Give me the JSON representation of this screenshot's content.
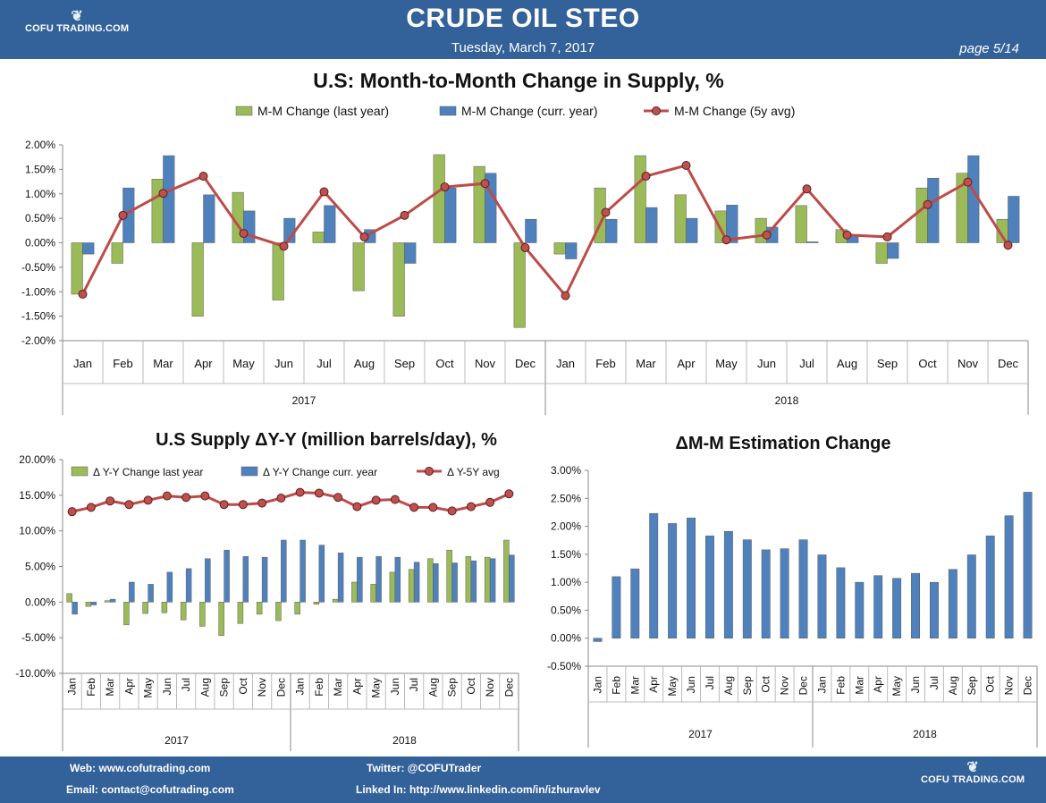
{
  "header": {
    "title": "CRUDE OIL STEO",
    "date": "Tuesday, March 7, 2017",
    "page": "page  5/14",
    "logo_text": "COFU TRADING.COM"
  },
  "footer": {
    "web_label": "Web:",
    "web_value": "www.cofutrading.com",
    "email_label": "Email:",
    "email_value": "contact@cofutrading.com",
    "twitter_label": "Twitter:",
    "twitter_value": "@COFUTrader",
    "linkedin_label": "Linked In:",
    "linkedin_value": "http://www.linkedin.com/in/izhuravlev",
    "logo_text": "COFU TRADING.COM"
  },
  "colors": {
    "header_bg": "#336199",
    "green": "#9bbb59",
    "blue": "#4f81bd",
    "red": "#be4b48",
    "dot": "#c0504d"
  },
  "chart_data": [
    {
      "type": "bar",
      "title": "U.S: Month-to-Month Change in Supply, %",
      "months": [
        "Jan",
        "Feb",
        "Mar",
        "Apr",
        "May",
        "Jun",
        "Jul",
        "Aug",
        "Sep",
        "Oct",
        "Nov",
        "Dec",
        "Jan",
        "Feb",
        "Mar",
        "Apr",
        "May",
        "Jun",
        "Jul",
        "Aug",
        "Sep",
        "Oct",
        "Nov",
        "Dec"
      ],
      "years": [
        "2017",
        "2018"
      ],
      "yticks": [
        "2.00%",
        "1.50%",
        "1.00%",
        "0.50%",
        "0.00%",
        "-0.50%",
        "-1.00%",
        "-1.50%",
        "-2.00%"
      ],
      "ylim": [
        -2.0,
        2.0
      ],
      "legend": "top",
      "grid": false,
      "series": [
        {
          "name": "M-M Change (last year)",
          "kind": "bar",
          "values": [
            -1.05,
            -0.42,
            1.3,
            -1.5,
            1.03,
            -1.17,
            0.22,
            -0.98,
            -1.5,
            1.8,
            1.56,
            -1.73,
            -0.23,
            1.12,
            1.78,
            0.98,
            0.65,
            0.5,
            0.76,
            0.27,
            -0.42,
            1.12,
            1.42,
            0.48
          ]
        },
        {
          "name": "M-M Change (curr. year)",
          "kind": "bar",
          "values": [
            -0.23,
            1.12,
            1.78,
            0.98,
            0.65,
            0.5,
            0.76,
            0.27,
            -0.42,
            1.12,
            1.42,
            0.48,
            -0.33,
            0.48,
            0.72,
            0.5,
            0.77,
            0.32,
            0.02,
            0.14,
            -0.32,
            1.32,
            1.78,
            0.95
          ]
        },
        {
          "name": "M-M Change (5y avg)",
          "kind": "line",
          "values": [
            -1.05,
            0.56,
            1.01,
            1.36,
            0.19,
            -0.07,
            1.04,
            0.12,
            0.56,
            1.14,
            1.21,
            -0.1,
            -1.08,
            0.62,
            1.36,
            1.58,
            0.06,
            0.16,
            1.1,
            0.16,
            0.12,
            0.78,
            1.24,
            -0.05
          ]
        }
      ]
    },
    {
      "type": "bar",
      "title": "U.S Supply ΔY-Y (million barrels/day), %",
      "months": [
        "Jan",
        "Feb",
        "Mar",
        "Apr",
        "May",
        "Jun",
        "Jul",
        "Aug",
        "Sep",
        "Oct",
        "Nov",
        "Dec",
        "Jan",
        "Feb",
        "Mar",
        "Apr",
        "May",
        "Jun",
        "Jul",
        "Aug",
        "Sep",
        "Oct",
        "Nov",
        "Dec"
      ],
      "years": [
        "2017",
        "2018"
      ],
      "yticks": [
        "20.00%",
        "15.00%",
        "10.00%",
        "5.00%",
        "0.00%",
        "-5.00%",
        "-10.00%"
      ],
      "ylim": [
        -10,
        20
      ],
      "legend": "top",
      "grid": false,
      "series": [
        {
          "name": "Δ Y-Y Change last year",
          "kind": "bar",
          "values": [
            1.2,
            -0.6,
            0.2,
            -3.2,
            -1.6,
            -1.5,
            -2.5,
            -3.4,
            -4.7,
            -3.0,
            -1.7,
            -2.6,
            -1.7,
            -0.3,
            0.4,
            2.8,
            2.5,
            4.2,
            4.6,
            6.1,
            7.3,
            6.4,
            6.3,
            8.7
          ]
        },
        {
          "name": "Δ Y-Y Change curr. year",
          "kind": "bar",
          "values": [
            -1.7,
            -0.4,
            0.4,
            2.8,
            2.5,
            4.2,
            4.7,
            6.1,
            7.3,
            6.4,
            6.3,
            8.7,
            8.7,
            8.0,
            6.9,
            6.3,
            6.4,
            6.3,
            5.6,
            5.4,
            5.5,
            5.8,
            6.1,
            6.6
          ]
        },
        {
          "name": "Δ Y-5Y avg",
          "kind": "line",
          "values": [
            12.7,
            13.3,
            14.2,
            13.7,
            14.3,
            14.9,
            14.7,
            14.9,
            13.7,
            13.7,
            13.9,
            14.6,
            15.4,
            15.3,
            14.7,
            13.4,
            14.3,
            14.4,
            13.3,
            13.3,
            12.8,
            13.4,
            14.0,
            15.2
          ]
        }
      ]
    },
    {
      "type": "bar",
      "title": "ΔM-M Estimation Change",
      "months": [
        "Jan",
        "Feb",
        "Mar",
        "Apr",
        "May",
        "Jun",
        "Jul",
        "Aug",
        "Sep",
        "Oct",
        "Nov",
        "Dec",
        "Jan",
        "Feb",
        "Mar",
        "Apr",
        "May",
        "Jun",
        "Jul",
        "Aug",
        "Sep",
        "Oct",
        "Nov",
        "Dec"
      ],
      "years": [
        "2017",
        "2018"
      ],
      "yticks": [
        "3.00%",
        "2.50%",
        "2.00%",
        "1.50%",
        "1.00%",
        "0.50%",
        "0.00%",
        "-0.50%"
      ],
      "ylim": [
        -0.5,
        3.0
      ],
      "grid": false,
      "series": [
        {
          "kind": "bar",
          "values": [
            -0.06,
            1.1,
            1.24,
            2.23,
            2.05,
            2.15,
            1.83,
            1.91,
            1.76,
            1.58,
            1.6,
            1.76,
            1.49,
            1.26,
            1.0,
            1.12,
            1.07,
            1.16,
            1.0,
            1.23,
            1.49,
            1.83,
            2.19,
            2.61
          ]
        }
      ]
    }
  ]
}
